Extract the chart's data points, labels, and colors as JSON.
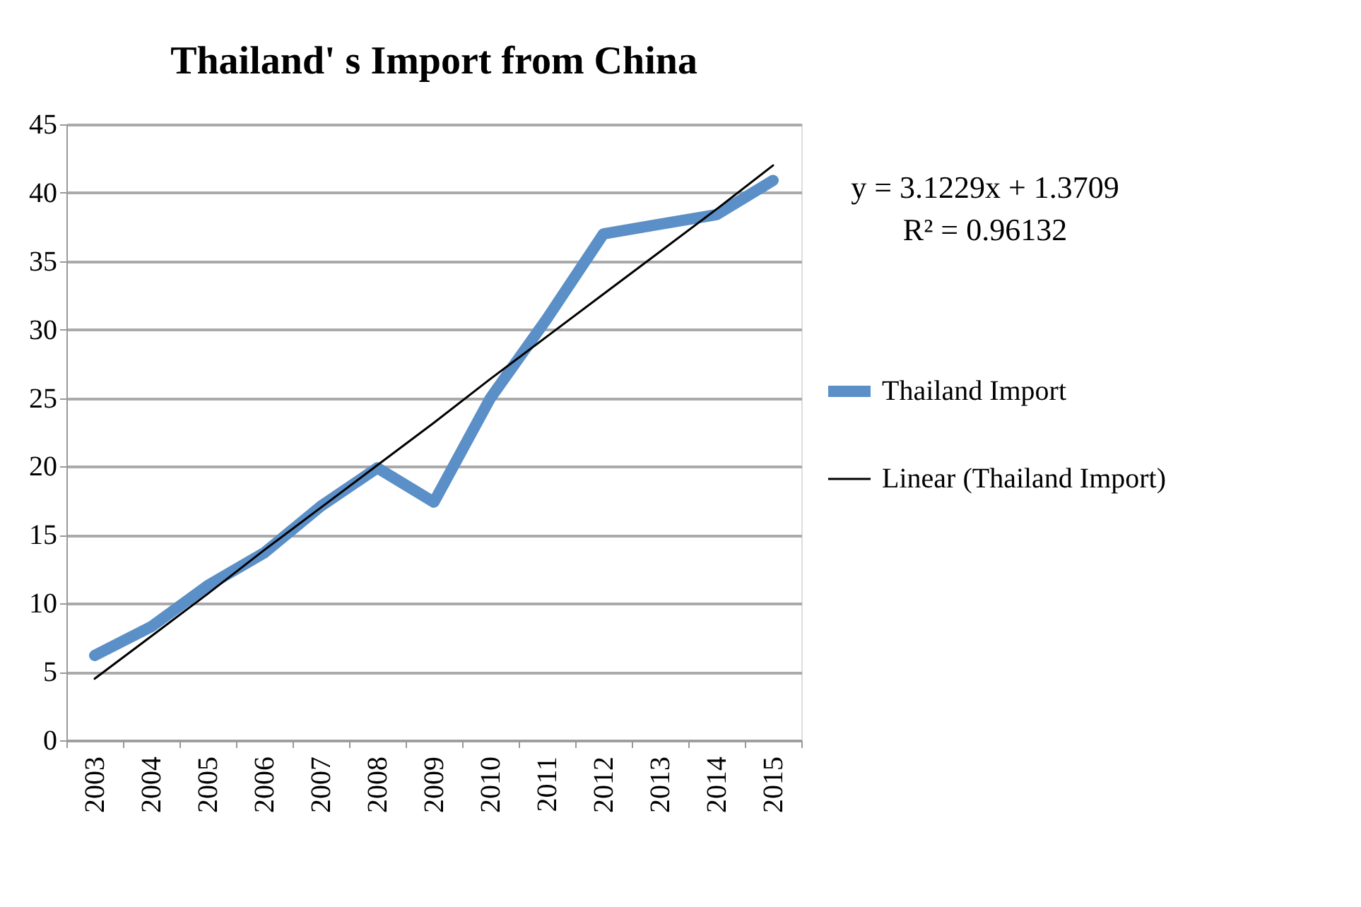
{
  "chart_data": {
    "type": "line",
    "title": "Thailand' s Import from China",
    "categories": [
      "2003",
      "2004",
      "2005",
      "2006",
      "2007",
      "2008",
      "2009",
      "2010",
      "2011",
      "2012",
      "2013",
      "2014",
      "2015"
    ],
    "series": [
      {
        "name": "Thailand Import",
        "color": "#5b8fc7",
        "values": [
          6.2,
          8.3,
          11.3,
          13.7,
          17.1,
          19.9,
          17.4,
          25.0,
          30.8,
          37.0,
          37.7,
          38.4,
          40.9
        ]
      },
      {
        "name": "Linear (Thailand Import)",
        "color": "#000000",
        "type": "line",
        "values": [
          4.5,
          7.6,
          10.7,
          13.9,
          17.0,
          20.1,
          23.2,
          26.4,
          29.5,
          32.6,
          35.7,
          38.8,
          42.0
        ]
      }
    ],
    "ylim": [
      0,
      45
    ],
    "yticks": [
      0,
      5,
      10,
      15,
      20,
      25,
      30,
      35,
      40,
      45
    ],
    "grid": "y",
    "legend": "right",
    "marker": "none",
    "line_style": "solid",
    "annotations": [
      "y = 3.1229x + 1.3709",
      "R² = 0.96132"
    ]
  }
}
